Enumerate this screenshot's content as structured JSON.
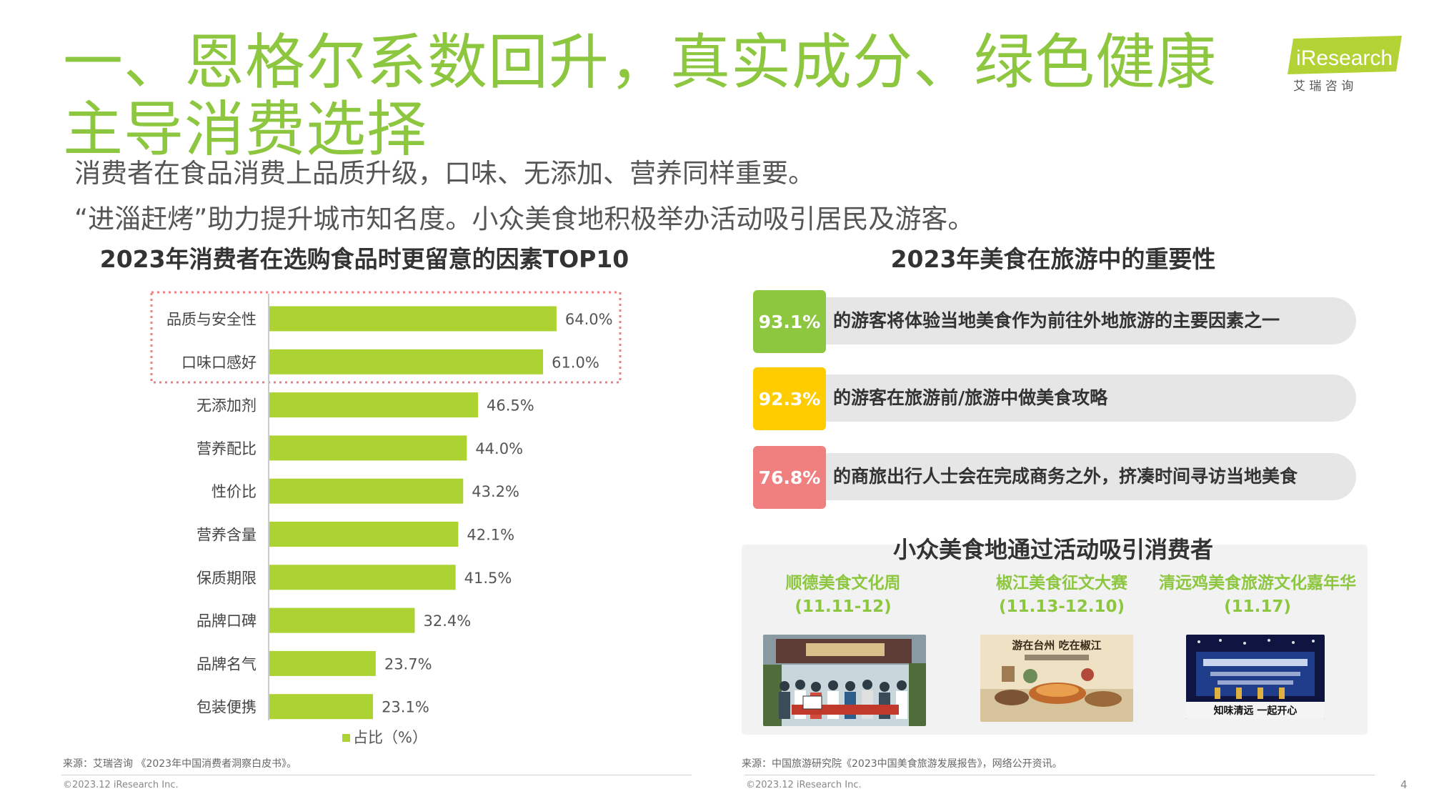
{
  "title": "一、恩格尔系数回升，真实成分、绿色健康主导消费选择",
  "subtitles": [
    "消费者在食品消费上品质升级，口味、无添加、营养同样重要。",
    "“进淄赶烤”助力提升城市知名度。小众美食地积极举办活动吸引居民及游客。"
  ],
  "logo": {
    "brand": "iResearch",
    "cn": "艾 瑞 咨 询",
    "color": "#b2d235"
  },
  "left_chart": {
    "title": "2023年消费者在选购食品时更留意的因素TOP10"
  },
  "chart_data": {
    "type": "bar",
    "orientation": "horizontal",
    "title": "2023年消费者在选购食品时更留意的因素TOP10",
    "categories": [
      "品质与安全性",
      "口味口感好",
      "无添加剂",
      "营养配比",
      "性价比",
      "营养含量",
      "保质期限",
      "品牌口碑",
      "品牌名气",
      "包装便携"
    ],
    "series": [
      {
        "name": "占比（%）",
        "values": [
          64.0,
          61.0,
          46.5,
          44.0,
          43.2,
          42.1,
          41.5,
          32.4,
          23.7,
          23.1
        ]
      }
    ],
    "value_labels": [
      "64.0%",
      "61.0%",
      "46.5%",
      "44.0%",
      "43.2%",
      "42.1%",
      "41.5%",
      "32.4%",
      "23.7%",
      "23.1%"
    ],
    "xlim": [
      0,
      100
    ],
    "legend": {
      "position": "bottom",
      "label": "占比（%）"
    },
    "highlighted_categories": [
      "品质与安全性",
      "口味口感好"
    ],
    "bar_color": "#add332",
    "highlight_border_color": "#f08080"
  },
  "right_panel": {
    "title": "2023年美食在旅游中的重要性",
    "stats": [
      {
        "value": "93.1%",
        "text": "的游客将体验当地美食作为前往外地旅游的主要因素之一",
        "color": "#8dc63f"
      },
      {
        "value": "92.3%",
        "text": "的游客在旅游前/旅游中做美食攻略",
        "color": "#ffcc00"
      },
      {
        "value": "76.8%",
        "text": "的商旅出行人士会在完成商务之外，挤凑时间寻访当地美食",
        "color": "#f08080"
      }
    ],
    "events_title": "小众美食地通过活动吸引消费者",
    "events": [
      {
        "name": "顺德美食文化周",
        "date": "(11.11-12)"
      },
      {
        "name": "椒江美食征文大赛",
        "date": "(11.13-12.10)",
        "image_text": "游在台州 吃在椒江"
      },
      {
        "name": "清远鸡美食旅游文化嘉年华",
        "date": "(11.17)",
        "image_text": "知味清远 一起开心"
      }
    ]
  },
  "footer": {
    "source_left": "来源：艾瑞咨询 《2023年中国消费者洞察白皮书》。",
    "source_right": "来源：中国旅游研究院《2023中国美食旅游发展报告》，网络公开资讯。",
    "copyright_left": "©2023.12 iResearch Inc.",
    "copyright_right": "©2023.12 iResearch Inc.",
    "page_number": "4"
  }
}
